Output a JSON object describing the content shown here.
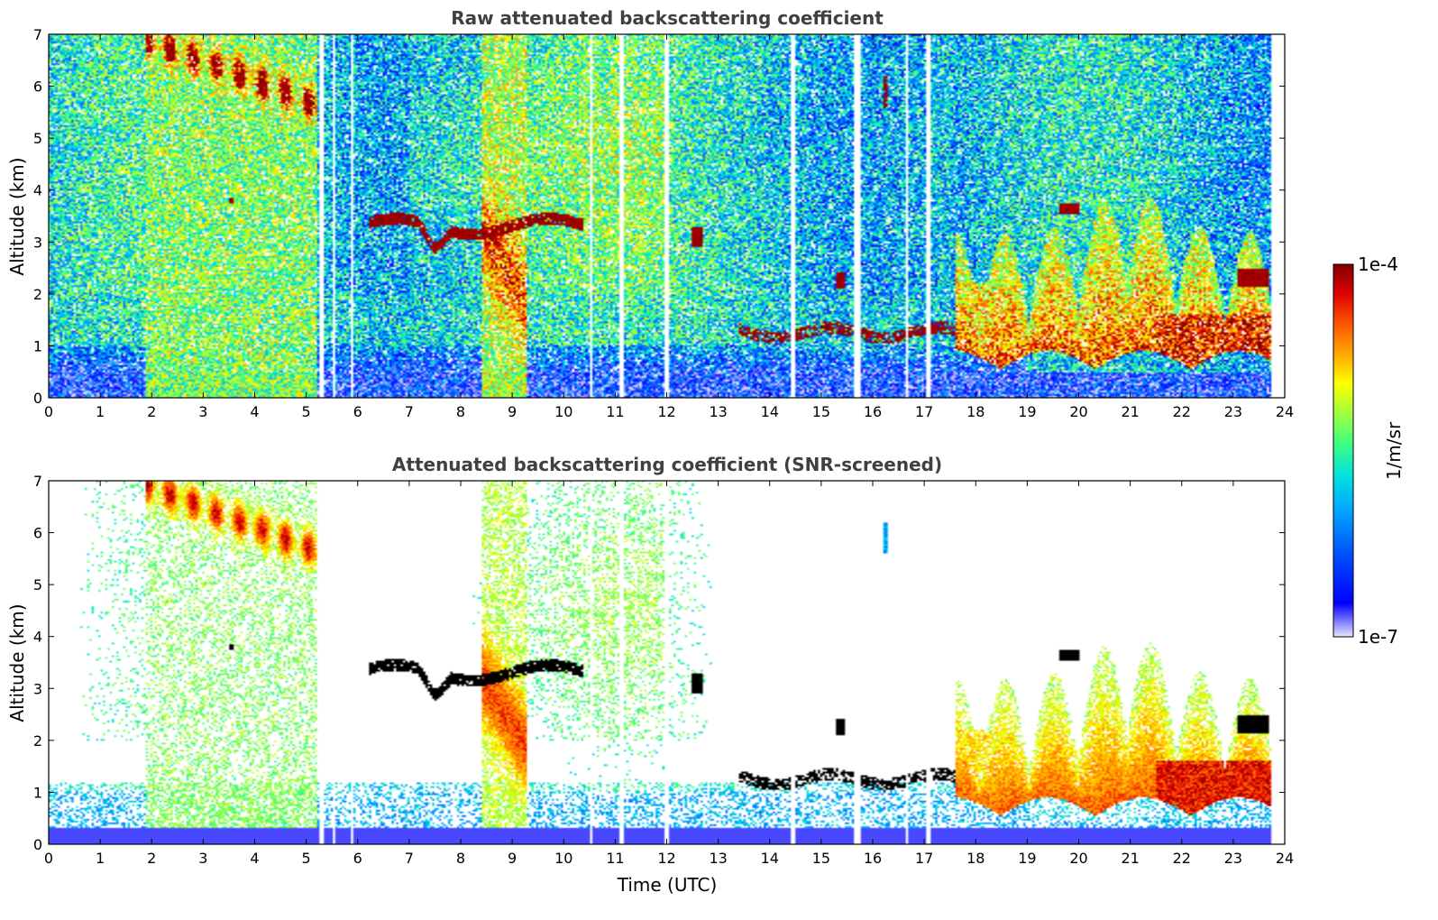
{
  "chart_data": [
    {
      "type": "heatmap",
      "title": "Raw attenuated backscattering coefficient",
      "xlabel": "",
      "ylabel": "Altitude (km)",
      "xlim": [
        0,
        24
      ],
      "ylim": [
        0,
        7
      ],
      "x_ticks": [
        "0",
        "1",
        "2",
        "3",
        "4",
        "5",
        "6",
        "7",
        "8",
        "9",
        "10",
        "11",
        "12",
        "13",
        "14",
        "15",
        "16",
        "17",
        "18",
        "19",
        "20",
        "21",
        "22",
        "23",
        "24"
      ],
      "y_ticks": [
        "0",
        "1",
        "2",
        "3",
        "4",
        "5",
        "6",
        "7"
      ],
      "data_gap_times": [
        5.3,
        5.55,
        5.9,
        10.55,
        11.1,
        11.15,
        12.0,
        14.45,
        15.65,
        15.72,
        16.65,
        17.05,
        17.1,
        23.75
      ],
      "features": [
        {
          "kind": "ground-layer",
          "t0": 0,
          "t1": 23.8,
          "z0": 0,
          "z1": 0.5,
          "level": "low"
        },
        {
          "kind": "cirrus",
          "t0": 1.9,
          "t1": 5.2,
          "z0": 5.4,
          "z1": 6.9,
          "level": "high"
        },
        {
          "kind": "cloud-band",
          "t0": 6.2,
          "t1": 10.4,
          "z0": 2.8,
          "z1": 3.55,
          "level": "saturated"
        },
        {
          "kind": "fall-streak",
          "t0": 8.4,
          "t1": 9.3,
          "z0": 1.7,
          "z1": 3.3,
          "level": "medium"
        },
        {
          "kind": "low-cloud",
          "t0": 13.4,
          "t1": 17.6,
          "z0": 1.0,
          "z1": 1.5,
          "level": "saturated"
        },
        {
          "kind": "convective-layer",
          "t0": 17.6,
          "t1": 23.8,
          "z0": 0.5,
          "z1": 4.0,
          "level": "high"
        },
        {
          "kind": "cloud-patch",
          "t0": 19.6,
          "t1": 20.0,
          "z0": 3.55,
          "z1": 3.75,
          "level": "saturated"
        },
        {
          "kind": "cloud-patch",
          "t0": 23.1,
          "t1": 23.7,
          "z0": 2.1,
          "z1": 2.5,
          "level": "saturated"
        }
      ]
    },
    {
      "type": "heatmap",
      "title": "Attenuated backscattering coefficient (SNR-screened)",
      "xlabel": "Time (UTC)",
      "ylabel": "Altitude (km)",
      "xlim": [
        0,
        24
      ],
      "ylim": [
        0,
        7
      ],
      "x_ticks": [
        "0",
        "1",
        "2",
        "3",
        "4",
        "5",
        "6",
        "7",
        "8",
        "9",
        "10",
        "11",
        "12",
        "13",
        "14",
        "15",
        "16",
        "17",
        "18",
        "19",
        "20",
        "21",
        "22",
        "23",
        "24"
      ],
      "y_ticks": [
        "0",
        "1",
        "2",
        "3",
        "4",
        "5",
        "6",
        "7"
      ],
      "screening": "low-SNR pixels removed"
    }
  ],
  "colorbar": {
    "label": "1/m/sr",
    "max_label": "1e-4",
    "min_label": "1e-7",
    "scale": "log",
    "range": [
      1e-07,
      0.0001
    ],
    "colormap": [
      "#e6e6ff",
      "#8080ff",
      "#0000ff",
      "#0050ff",
      "#00a0ff",
      "#00e0e0",
      "#40ff80",
      "#a0ff40",
      "#ffff00",
      "#ffb000",
      "#ff6000",
      "#e00000",
      "#800000"
    ]
  },
  "colors": {
    "background": "#ffffff",
    "title_text": "#404040",
    "saturated": "#800000",
    "screened_saturated": "#000000"
  }
}
